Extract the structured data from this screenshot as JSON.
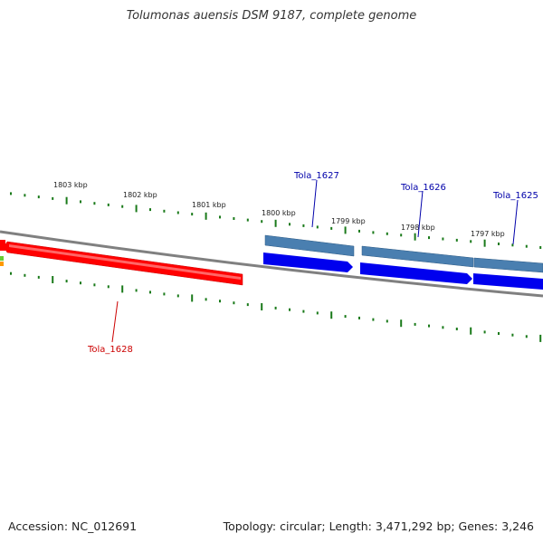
{
  "title": "Tolumonas auensis DSM 9187, complete genome",
  "footer": {
    "accession": "Accession: NC_012691",
    "summary": "Topology: circular; Length: 3,471,292 bp; Genes: 3,246"
  },
  "ticks": [
    "1803 kbp",
    "1802 kbp",
    "1801 kbp",
    "1800 kbp",
    "1799 kbp",
    "1798 kbp",
    "1797 kbp"
  ],
  "genes": [
    {
      "name": "Tola_1628",
      "color": "#cc0000"
    },
    {
      "name": "Tola_1627",
      "color": "#0000aa"
    },
    {
      "name": "Tola_1626",
      "color": "#0000aa"
    },
    {
      "name": "Tola_1625",
      "color": "#0000aa"
    }
  ],
  "colors": {
    "backbone": "#808080",
    "reverse_cds": "#ff0000",
    "forward_cds": "#0000ee",
    "gene_track": "#4a7fb0",
    "tick_marks": "#1a7a1a"
  }
}
